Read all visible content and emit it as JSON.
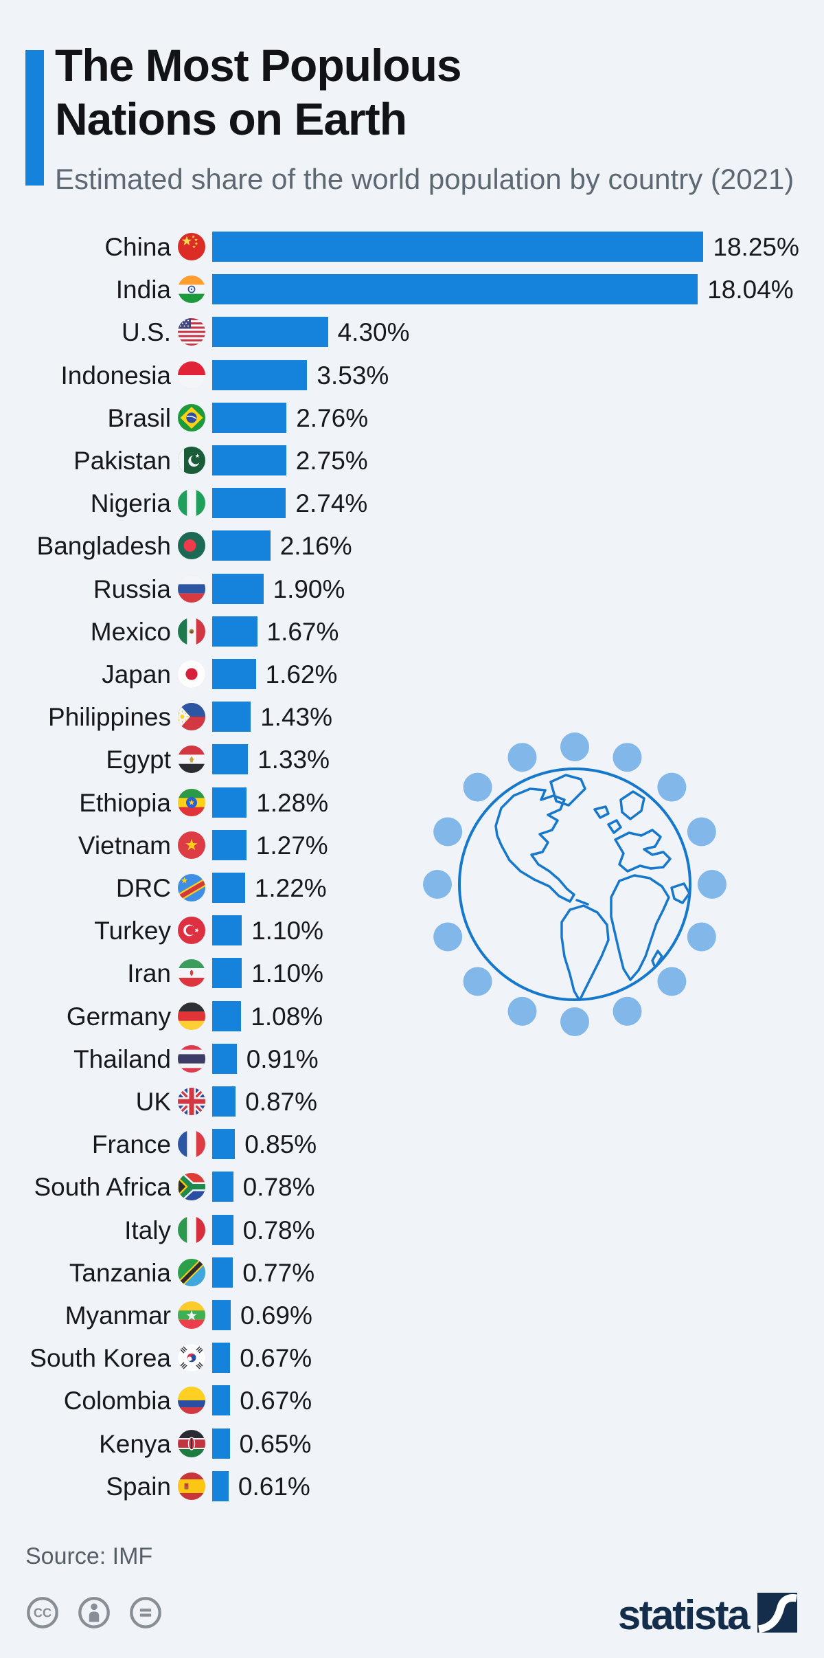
{
  "header": {
    "title_line1": "The Most Populous",
    "title_line2": "Nations on Earth",
    "subtitle": "Estimated share of the world population by country (2021)"
  },
  "chart_data": {
    "type": "bar",
    "orientation": "horizontal",
    "title": "The Most Populous Nations on Earth",
    "subtitle": "Estimated share of the world population by country (2021)",
    "unit": "% of world population",
    "year": "2021",
    "sort": "descending",
    "grid": false,
    "value_axis_shown": false,
    "xlim": [
      0,
      18.25
    ],
    "bar_color": "#1583db",
    "categories": [
      "China",
      "India",
      "U.S.",
      "Indonesia",
      "Brasil",
      "Pakistan",
      "Nigeria",
      "Bangladesh",
      "Russia",
      "Mexico",
      "Japan",
      "Philippines",
      "Egypt",
      "Ethiopia",
      "Vietnam",
      "DRC",
      "Turkey",
      "Iran",
      "Germany",
      "Thailand",
      "UK",
      "France",
      "South Africa",
      "Italy",
      "Tanzania",
      "Myanmar",
      "South Korea",
      "Colombia",
      "Kenya",
      "Spain"
    ],
    "values": [
      18.25,
      18.04,
      4.3,
      3.53,
      2.76,
      2.75,
      2.74,
      2.16,
      1.9,
      1.67,
      1.62,
      1.43,
      1.33,
      1.28,
      1.27,
      1.22,
      1.1,
      1.1,
      1.08,
      0.91,
      0.87,
      0.85,
      0.78,
      0.78,
      0.77,
      0.69,
      0.67,
      0.67,
      0.65,
      0.61
    ],
    "value_labels": [
      "18.25%",
      "18.04%",
      "4.30%",
      "3.53%",
      "2.76%",
      "2.75%",
      "2.74%",
      "2.16%",
      "1.90%",
      "1.67%",
      "1.62%",
      "1.43%",
      "1.33%",
      "1.28%",
      "1.27%",
      "1.22%",
      "1.10%",
      "1.10%",
      "1.08%",
      "0.91%",
      "0.87%",
      "0.85%",
      "0.78%",
      "0.78%",
      "0.77%",
      "0.69%",
      "0.67%",
      "0.67%",
      "0.65%",
      "0.61%"
    ],
    "flag_icons": [
      "china-flag-icon",
      "india-flag-icon",
      "us-flag-icon",
      "indonesia-flag-icon",
      "brazil-flag-icon",
      "pakistan-flag-icon",
      "nigeria-flag-icon",
      "bangladesh-flag-icon",
      "russia-flag-icon",
      "mexico-flag-icon",
      "japan-flag-icon",
      "philippines-flag-icon",
      "egypt-flag-icon",
      "ethiopia-flag-icon",
      "vietnam-flag-icon",
      "drc-flag-icon",
      "turkey-flag-icon",
      "iran-flag-icon",
      "germany-flag-icon",
      "thailand-flag-icon",
      "uk-flag-icon",
      "france-flag-icon",
      "south-africa-flag-icon",
      "italy-flag-icon",
      "tanzania-flag-icon",
      "myanmar-flag-icon",
      "south-korea-flag-icon",
      "colombia-flag-icon",
      "kenya-flag-icon",
      "spain-flag-icon"
    ]
  },
  "decoration": {
    "globe_icon": "globe-with-people-dots-icon",
    "dot_count": 16,
    "dot_color": "#82b7e9",
    "outline_color": "#1578cc"
  },
  "footer": {
    "source": "Source: IMF",
    "license_icons": [
      "creative-commons-icon",
      "attribution-icon",
      "equals-icon"
    ],
    "brand_wordmark": "statista"
  },
  "colors": {
    "page_bg": "#f0f4f8",
    "bar_blue": "#1583db",
    "title_black": "#111316",
    "subtitle_gray": "#5e6872",
    "source_gray": "#565e67",
    "license_gray": "#878e95",
    "brand_navy": "#132d4a"
  }
}
